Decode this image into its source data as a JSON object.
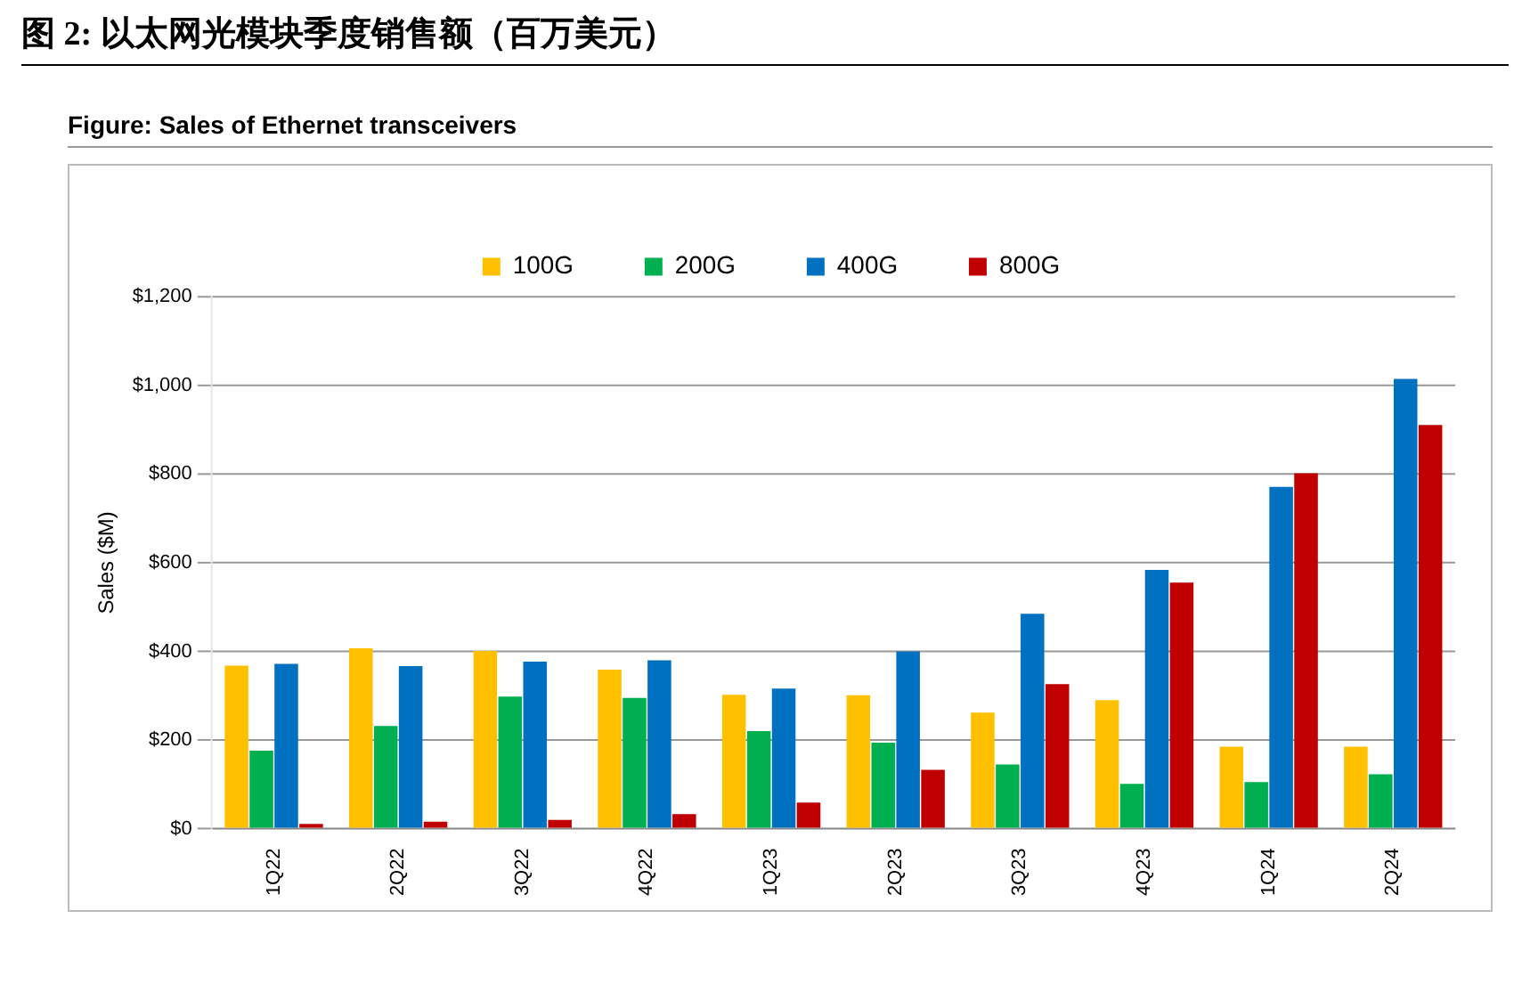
{
  "chart_data": {
    "type": "bar",
    "title": "图 2: 以太网光模块季度销售额（百万美元）",
    "subtitle": "Figure: Sales of Ethernet transceivers",
    "ylabel": "Sales ($M)",
    "categories": [
      "1Q22",
      "2Q22",
      "3Q22",
      "4Q22",
      "1Q23",
      "2Q23",
      "3Q23",
      "4Q23",
      "1Q24",
      "2Q24"
    ],
    "series": [
      {
        "name": "100G",
        "color": "#ffc000",
        "values": [
          368,
          407,
          401,
          359,
          302,
          301,
          262,
          290,
          185,
          185
        ]
      },
      {
        "name": "200G",
        "color": "#00b050",
        "values": [
          176,
          232,
          298,
          295,
          220,
          194,
          145,
          101,
          105,
          123
        ]
      },
      {
        "name": "400G",
        "color": "#0070c0",
        "values": [
          372,
          367,
          377,
          380,
          316,
          400,
          485,
          584,
          771,
          1015
        ]
      },
      {
        "name": "800G",
        "color": "#c00000",
        "values": [
          11,
          16,
          20,
          33,
          59,
          133,
          326,
          555,
          802,
          911
        ]
      }
    ],
    "ylim": [
      0,
      1200
    ],
    "yticks": [
      {
        "value": 0,
        "label": "$0"
      },
      {
        "value": 200,
        "label": "$200"
      },
      {
        "value": 400,
        "label": "$400"
      },
      {
        "value": 600,
        "label": "$600"
      },
      {
        "value": 800,
        "label": "$800"
      },
      {
        "value": 1000,
        "label": "$1,000"
      },
      {
        "value": 1200,
        "label": "$1,200"
      }
    ],
    "grid": "y",
    "legend": "top"
  }
}
